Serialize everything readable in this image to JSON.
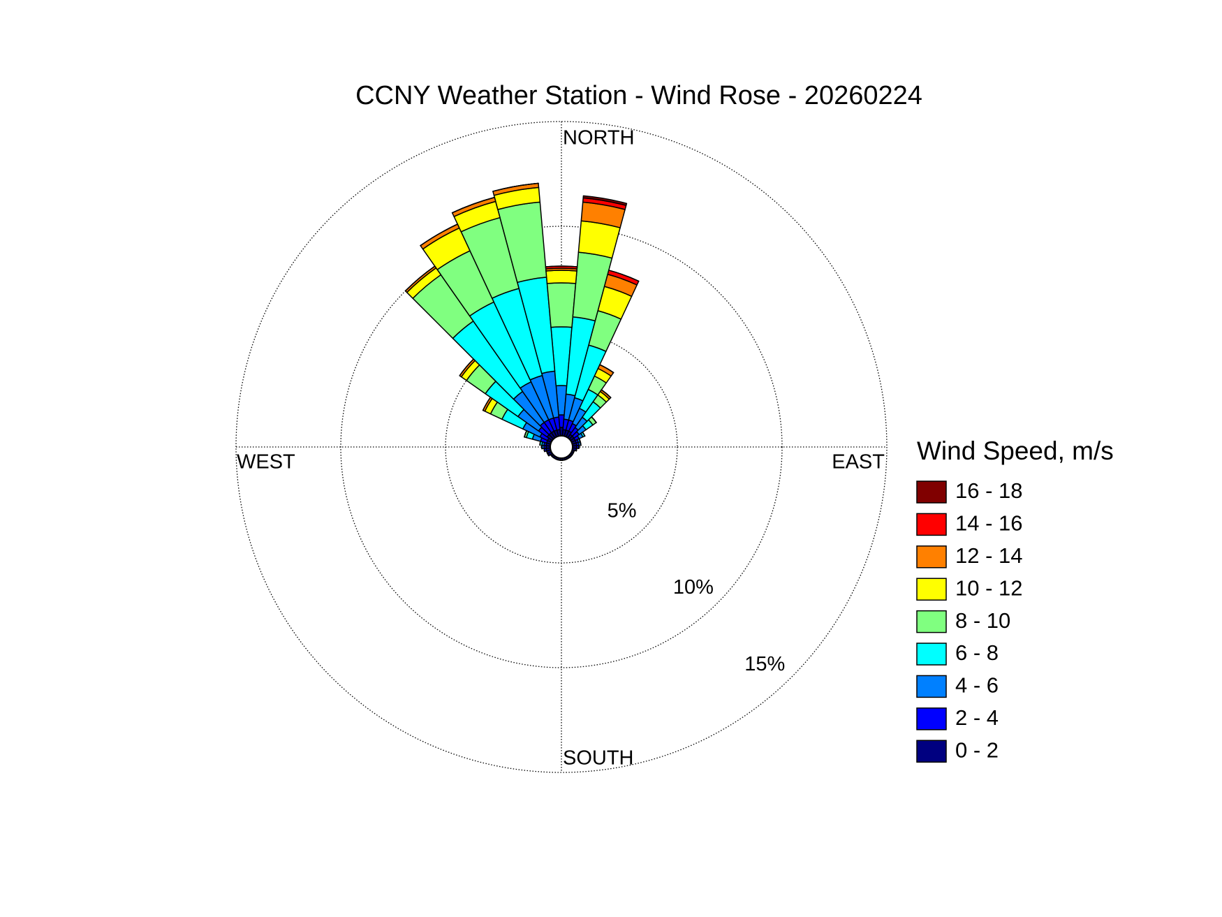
{
  "chart_data": {
    "type": "windrose",
    "title": "CCNY Weather Station - Wind Rose - 20260224",
    "compass": {
      "north": "NORTH",
      "east": "EAST",
      "south": "SOUTH",
      "west": "WEST"
    },
    "legend_title": "Wind Speed, m/s",
    "x": [
      0,
      10,
      20,
      30,
      40,
      50,
      60,
      70,
      80,
      90,
      100,
      110,
      120,
      130,
      140,
      150,
      160,
      170,
      180,
      190,
      200,
      210,
      220,
      230,
      240,
      250,
      260,
      270,
      280,
      290,
      300,
      310,
      320,
      330,
      340,
      350
    ],
    "ylim": [
      0,
      15
    ],
    "yticks": [
      {
        "value": 5,
        "label": "5%"
      },
      {
        "value": 10,
        "label": "10%"
      },
      {
        "value": 15,
        "label": "15%"
      }
    ],
    "grid": true,
    "series": [
      {
        "name": "0 - 2",
        "color": "#000080",
        "values": [
          0.4,
          0.3,
          0.3,
          0.3,
          0.2,
          0.2,
          0.2,
          0.2,
          0.2,
          0.2,
          0.2,
          0.1,
          0.1,
          0.1,
          0.1,
          0.1,
          0.1,
          0.1,
          0.1,
          0.1,
          0.1,
          0.1,
          0.1,
          0.1,
          0.2,
          0.2,
          0.2,
          0.2,
          0.2,
          0.2,
          0.2,
          0.3,
          0.3,
          0.3,
          0.3,
          0.3
        ]
      },
      {
        "name": "2 - 4",
        "color": "#0000ff",
        "values": [
          0.6,
          0.5,
          0.5,
          0.4,
          0.4,
          0.3,
          0.2,
          0.1,
          0.1,
          0.1,
          0,
          0,
          0,
          0,
          0,
          0,
          0,
          0,
          0,
          0,
          0,
          0,
          0,
          0,
          0,
          0,
          0.1,
          0.1,
          0.1,
          0.3,
          0.4,
          0.5,
          0.6,
          0.6,
          0.6,
          0.6
        ]
      },
      {
        "name": "4 - 6",
        "color": "#0080ff",
        "values": [
          1.4,
          1.2,
          1.1,
          0.8,
          0.6,
          0.4,
          0.2,
          0.1,
          0.1,
          0,
          0,
          0,
          0,
          0,
          0,
          0,
          0,
          0,
          0,
          0,
          0,
          0,
          0,
          0,
          0,
          0,
          0,
          0.1,
          0.1,
          0.4,
          0.9,
          1.2,
          1.8,
          2.0,
          2.1,
          2.2
        ]
      },
      {
        "name": "6 - 8",
        "color": "#00ffff",
        "values": [
          2.8,
          3.7,
          2.6,
          1.0,
          0.9,
          0.4,
          0.1,
          0,
          0,
          0,
          0,
          0,
          0,
          0,
          0,
          0,
          0,
          0,
          0,
          0,
          0,
          0,
          0,
          0,
          0,
          0,
          0,
          0,
          0.1,
          0.3,
          1.1,
          1.9,
          4.1,
          4.2,
          4.3,
          4.5
        ]
      },
      {
        "name": "8 - 10",
        "color": "#80ff80",
        "values": [
          2.1,
          3.1,
          1.7,
          0.7,
          0.4,
          0.2,
          0,
          0,
          0,
          0,
          0,
          0,
          0,
          0,
          0,
          0,
          0,
          0,
          0,
          0,
          0,
          0,
          0,
          0,
          0,
          0,
          0,
          0,
          0,
          0.1,
          0.6,
          1.1,
          2.7,
          2.7,
          3.5,
          3.6
        ]
      },
      {
        "name": "10 - 12",
        "color": "#ffff00",
        "values": [
          0.6,
          1.5,
          1.2,
          0.4,
          0.2,
          0,
          0,
          0,
          0,
          0,
          0,
          0,
          0,
          0,
          0,
          0,
          0,
          0,
          0,
          0,
          0,
          0,
          0,
          0,
          0,
          0,
          0,
          0,
          0,
          0,
          0.3,
          0.3,
          0.4,
          1.2,
          0.8,
          0.7
        ]
      },
      {
        "name": "12 - 14",
        "color": "#ff8000",
        "values": [
          0.1,
          0.9,
          0.6,
          0.2,
          0.1,
          0,
          0,
          0,
          0,
          0,
          0,
          0,
          0,
          0,
          0,
          0,
          0,
          0,
          0,
          0,
          0,
          0,
          0,
          0,
          0,
          0,
          0,
          0,
          0,
          0,
          0.1,
          0.1,
          0.1,
          0.2,
          0.2,
          0.2
        ]
      },
      {
        "name": "14 - 16",
        "color": "#ff0000",
        "values": [
          0.1,
          0.2,
          0.2,
          0,
          0,
          0,
          0,
          0,
          0,
          0,
          0,
          0,
          0,
          0,
          0,
          0,
          0,
          0,
          0,
          0,
          0,
          0,
          0,
          0,
          0,
          0,
          0,
          0,
          0,
          0,
          0,
          0,
          0,
          0,
          0,
          0
        ]
      },
      {
        "name": "16 - 18",
        "color": "#800000",
        "values": [
          0,
          0.1,
          0,
          0,
          0,
          0,
          0,
          0,
          0,
          0,
          0,
          0,
          0,
          0,
          0,
          0,
          0,
          0,
          0,
          0,
          0,
          0,
          0,
          0,
          0,
          0,
          0,
          0,
          0,
          0,
          0,
          0,
          0,
          0,
          0,
          0
        ]
      }
    ]
  }
}
